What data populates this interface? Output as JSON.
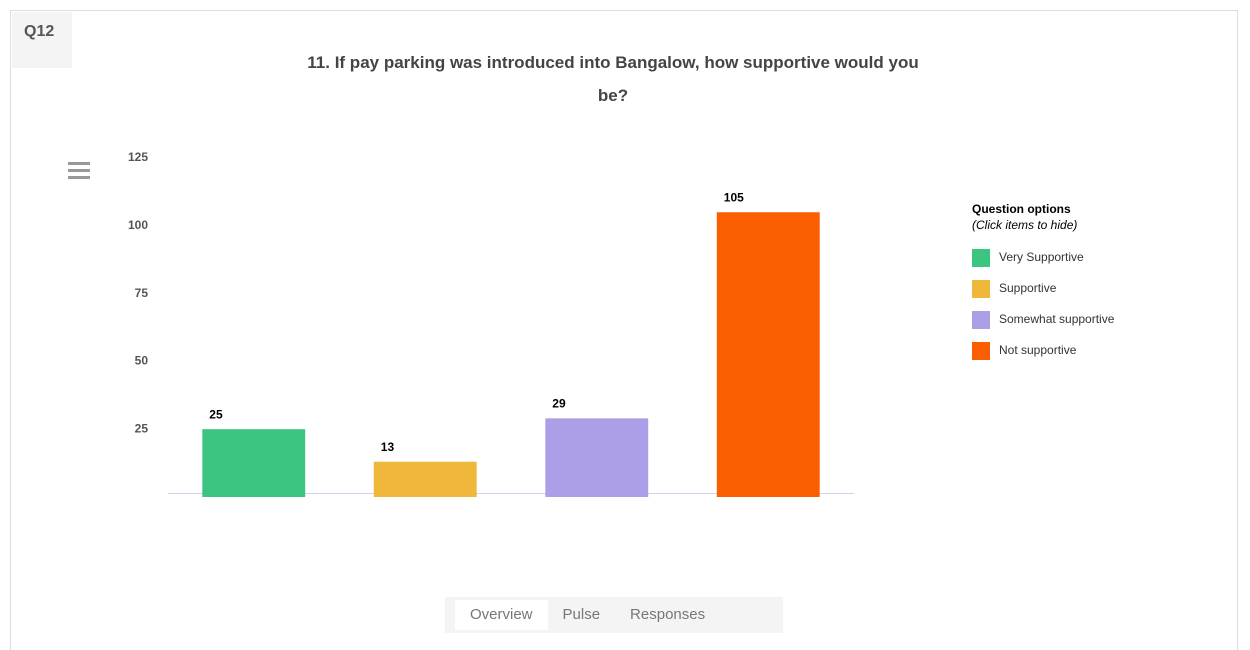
{
  "badge": "Q12",
  "chart_data": {
    "type": "bar",
    "title": "11. If pay parking was introduced into Bangalow, how supportive would you be?",
    "categories": [
      "Very Supportive",
      "Supportive",
      "Somewhat supportive",
      "Not supportive"
    ],
    "values": [
      25,
      13,
      29,
      105
    ],
    "colors": [
      "#3cc481",
      "#f0b83a",
      "#ac9fe8",
      "#fb5e01"
    ],
    "ylim": [
      0,
      125
    ],
    "yticks": [
      25,
      50,
      75,
      100,
      125
    ],
    "grid": false,
    "legend": {
      "title": "Question options",
      "subtitle": "(Click items to hide)",
      "position": "right"
    }
  },
  "tabs": [
    "Overview",
    "Pulse",
    "Responses"
  ]
}
